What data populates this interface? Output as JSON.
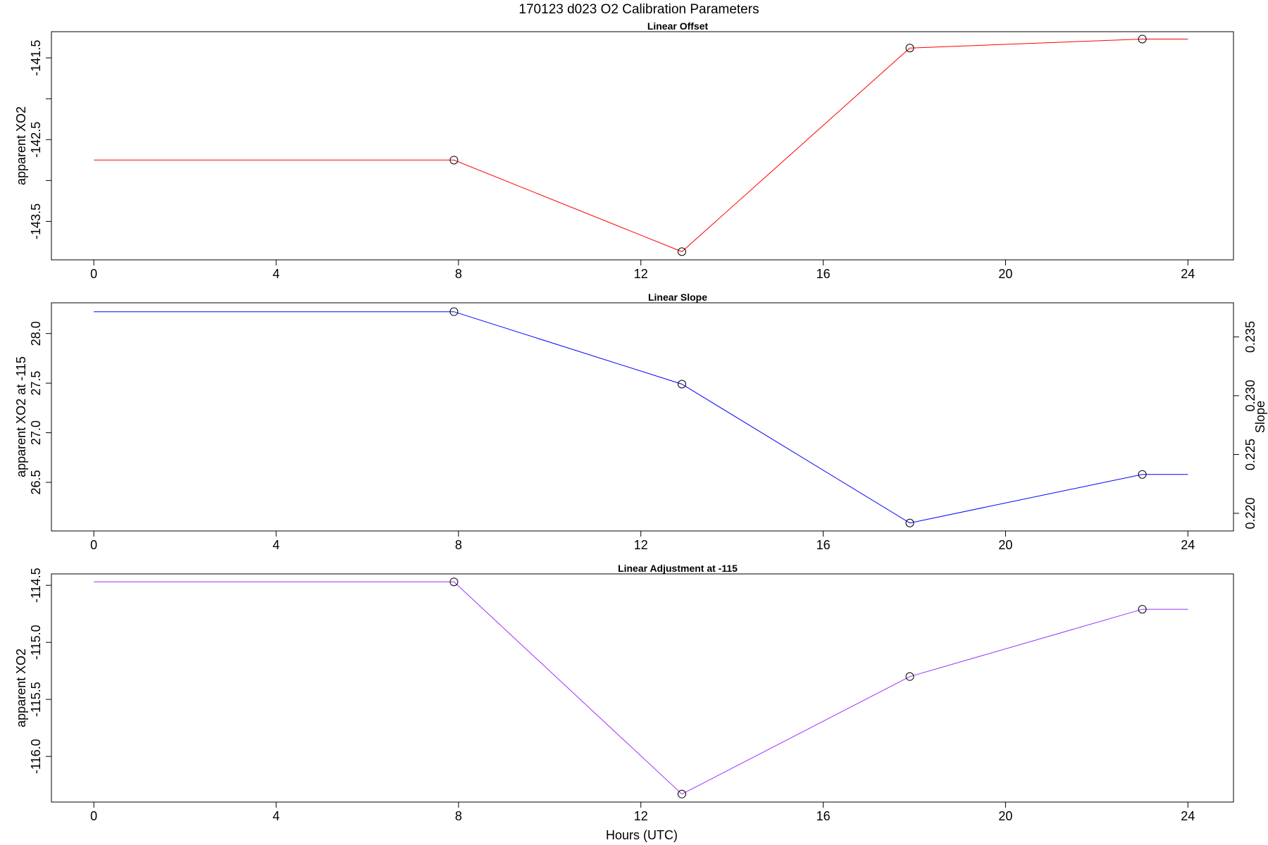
{
  "figure": {
    "title": "170123   d023   O2 Calibration Parameters",
    "xlabel": "Hours (UTC)"
  },
  "chart_data": [
    {
      "type": "line",
      "title": "Linear Offset",
      "xlabel": "",
      "ylabel": "apparent XO2",
      "color": "#ff0000",
      "marker": "open-circle",
      "x": [
        0,
        7.9,
        12.9,
        17.9,
        23.0,
        24
      ],
      "y": [
        -142.75,
        -142.75,
        -143.87,
        -141.38,
        -141.27,
        -141.27
      ],
      "marker_points": [
        1,
        2,
        3,
        4
      ],
      "xlim": [
        -0.93,
        25.0
      ],
      "ylim": [
        -143.97,
        -141.18
      ],
      "xticks": [
        0,
        4,
        8,
        12,
        16,
        20,
        24
      ],
      "yticks": [
        -143.5,
        -143.0,
        -142.5,
        -142.0,
        -141.5
      ],
      "ytick_labels": [
        "-143.5",
        "",
        "-142.5",
        "",
        "-141.5"
      ]
    },
    {
      "type": "line",
      "title": "Linear Slope",
      "xlabel": "",
      "ylabel": "apparent XO2 at -115",
      "ylabel_right": "Slope",
      "color": "#0000ff",
      "marker": "open-circle",
      "x": [
        0,
        7.9,
        12.9,
        17.9,
        23.0,
        24
      ],
      "y": [
        28.22,
        28.22,
        27.49,
        26.09,
        26.58,
        26.58
      ],
      "marker_points": [
        1,
        2,
        3,
        4
      ],
      "xlim": [
        -0.93,
        25.0
      ],
      "ylim": [
        26.01,
        28.31
      ],
      "xticks": [
        0,
        4,
        8,
        12,
        16,
        20,
        24
      ],
      "yticks": [
        26.5,
        27.0,
        27.5,
        28.0
      ],
      "ytick_labels": [
        "26.5",
        "27.0",
        "27.5",
        "28.0"
      ],
      "yticks_right": [
        0.22,
        0.225,
        0.23,
        0.235
      ],
      "ytick_labels_right": [
        "0.220",
        "0.225",
        "0.230",
        "0.235"
      ],
      "ylim_right": [
        0.2185,
        0.2379
      ]
    },
    {
      "type": "line",
      "title": "Linear Adjustment at -115",
      "xlabel": "Hours (UTC)",
      "ylabel": "apparent XO2",
      "color": "#9b30ff",
      "marker": "open-circle",
      "x": [
        0,
        7.9,
        12.9,
        17.9,
        23.0,
        24
      ],
      "y": [
        -114.47,
        -114.47,
        -116.33,
        -115.3,
        -114.71,
        -114.71
      ],
      "marker_points": [
        1,
        2,
        3,
        4
      ],
      "xlim": [
        -0.93,
        25.0
      ],
      "ylim": [
        -116.4,
        -114.4
      ],
      "xticks": [
        0,
        4,
        8,
        12,
        16,
        20,
        24
      ],
      "yticks": [
        -116.0,
        -115.5,
        -115.0,
        -114.5
      ],
      "ytick_labels": [
        "-116.0",
        "-115.5",
        "-115.0",
        "-114.5"
      ]
    }
  ]
}
